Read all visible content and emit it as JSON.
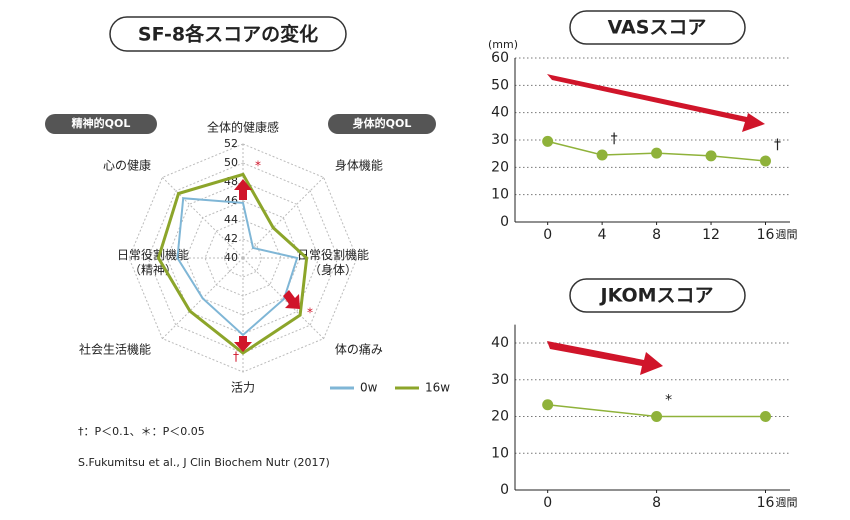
{
  "chart_data": [
    {
      "type": "radar",
      "title": "SF-8各スコアの変化",
      "categories": [
        "全体的健康感",
        "身体機能",
        "日常役割機能\n（身体）",
        "体の痛み",
        "活力",
        "社会生活機能",
        "日常役割機能\n（精神）",
        "心の健康"
      ],
      "series": [
        {
          "name": "0w",
          "color": "#7fb6d6",
          "values": [
            45.8,
            41.5,
            45.7,
            46.1,
            48.1,
            46.0,
            46.9,
            48.9
          ]
        },
        {
          "name": "16w",
          "color": "#8ca52a",
          "values": [
            48.8,
            44.5,
            46.7,
            48.5,
            50.0,
            47.9,
            48.9,
            49.6
          ]
        }
      ],
      "rlim": [
        40,
        52
      ],
      "rticks": [
        40,
        42,
        44,
        46,
        48,
        50,
        52
      ],
      "group_labels": [
        "精神的QOL",
        "身体的QOL"
      ],
      "annotations": [
        "*",
        "*",
        "†"
      ],
      "footnote": "†：P＜0.1、＊：P＜0.05",
      "source": "S.Fukumitsu et al., J Clin Biochem Nutr (2017)"
    },
    {
      "type": "line",
      "title": "VASスコア",
      "y_unit": "(mm)",
      "x_label": "週間",
      "x": [
        0,
        4,
        8,
        12,
        16
      ],
      "series": [
        {
          "color": "#8fb23a",
          "values": [
            29.5,
            24.5,
            25.2,
            24.2,
            22.3
          ]
        }
      ],
      "xlim": [
        -2.4,
        17.8
      ],
      "xticks": [
        0,
        4,
        8,
        12,
        16
      ],
      "ylim": [
        0,
        60
      ],
      "yticks": [
        0,
        10,
        20,
        30,
        40,
        50,
        60
      ],
      "grid": true,
      "annotations": [
        {
          "text": "†",
          "x": 4
        },
        {
          "text": "†",
          "x": 16
        }
      ]
    },
    {
      "type": "line",
      "title": "JKOMスコア",
      "x_label": "週間",
      "x": [
        0,
        8,
        16
      ],
      "series": [
        {
          "color": "#8fb23a",
          "values": [
            23.2,
            20,
            20
          ]
        }
      ],
      "xlim": [
        -2.4,
        17.8
      ],
      "xticks": [
        0,
        8,
        16
      ],
      "ylim": [
        0,
        45
      ],
      "yticks": [
        0,
        10,
        20,
        30,
        40
      ],
      "grid": true,
      "annotations": [
        {
          "text": "*",
          "x": 8
        }
      ]
    }
  ]
}
